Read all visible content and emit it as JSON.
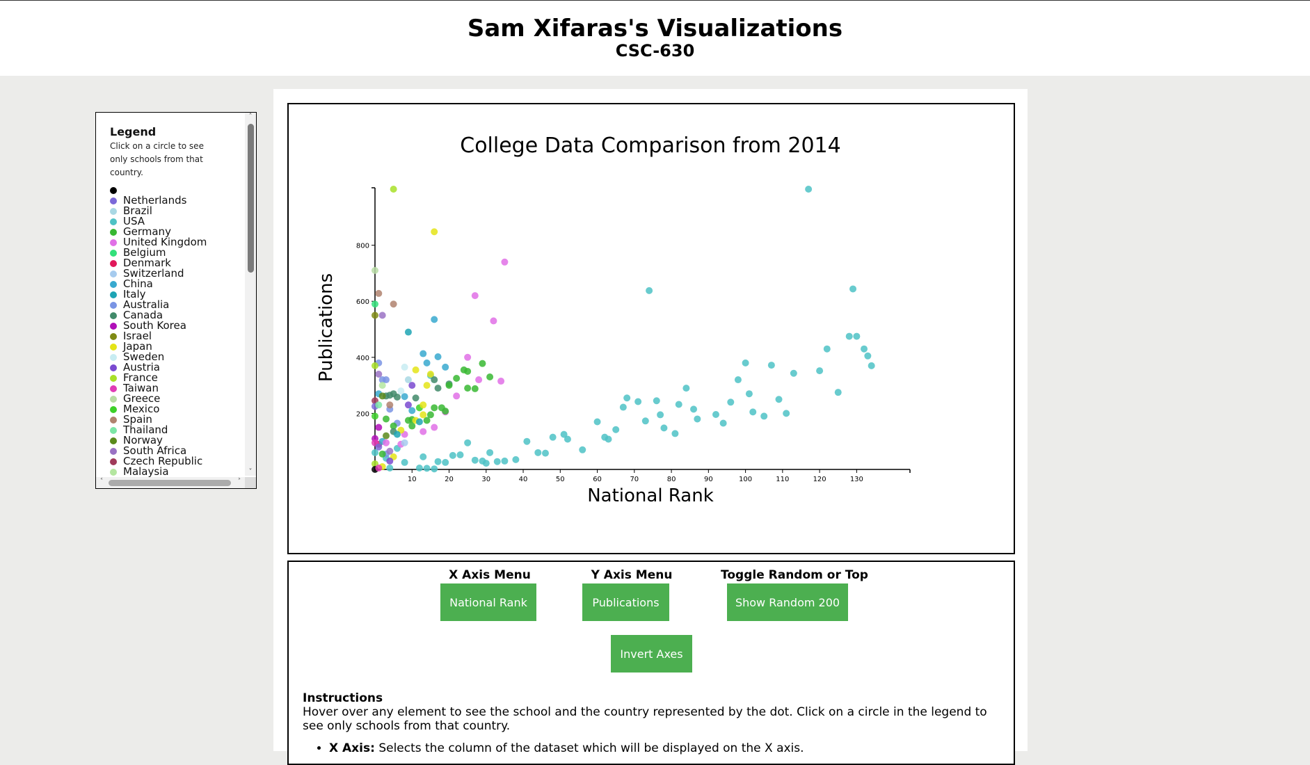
{
  "header": {
    "title": "Sam Xifaras's Visualizations",
    "subtitle": "CSC-630"
  },
  "legend": {
    "heading": "Legend",
    "hint": "Click on a circle to see only schools from that country.",
    "items": [
      {
        "label": "",
        "color": "#000000"
      },
      {
        "label": "Netherlands",
        "color": "#7b68d8"
      },
      {
        "label": "Brazil",
        "color": "#a9d8e4"
      },
      {
        "label": "USA",
        "color": "#4ec2c5"
      },
      {
        "label": "Germany",
        "color": "#38b832"
      },
      {
        "label": "United Kingdom",
        "color": "#e070e6"
      },
      {
        "label": "Belgium",
        "color": "#32e07a"
      },
      {
        "label": "Denmark",
        "color": "#e0185a"
      },
      {
        "label": "Switzerland",
        "color": "#a6cbee"
      },
      {
        "label": "China",
        "color": "#38a9cf"
      },
      {
        "label": "Italy",
        "color": "#1ea4b4"
      },
      {
        "label": "Australia",
        "color": "#7a94e4"
      },
      {
        "label": "Canada",
        "color": "#418a6a"
      },
      {
        "label": "South Korea",
        "color": "#b00eb8"
      },
      {
        "label": "Israel",
        "color": "#7f8a14"
      },
      {
        "label": "Japan",
        "color": "#e4e418"
      },
      {
        "label": "Sweden",
        "color": "#c8ecf2"
      },
      {
        "label": "Austria",
        "color": "#7a4ad0"
      },
      {
        "label": "France",
        "color": "#a8e028"
      },
      {
        "label": "Taiwan",
        "color": "#e03cb6"
      },
      {
        "label": "Greece",
        "color": "#b7dca4"
      },
      {
        "label": "Mexico",
        "color": "#3cd028"
      },
      {
        "label": "Spain",
        "color": "#b0826e"
      },
      {
        "label": "Thailand",
        "color": "#7ce6a6"
      },
      {
        "label": "Norway",
        "color": "#5a8a1c"
      },
      {
        "label": "South Africa",
        "color": "#9a72c4"
      },
      {
        "label": "Czech Republic",
        "color": "#a03a5a"
      },
      {
        "label": "Malaysia",
        "color": "#b4e6a0"
      }
    ]
  },
  "chart_data": {
    "type": "scatter",
    "title": "College Data Comparison from 2014",
    "xlabel": "National Rank",
    "ylabel": "Publications",
    "xlim": [
      0,
      135
    ],
    "ylim": [
      0,
      1000
    ],
    "xticks": [
      10,
      20,
      30,
      40,
      50,
      60,
      70,
      80,
      90,
      100,
      110,
      120,
      130
    ],
    "yticks": [
      200,
      400,
      600,
      800
    ],
    "grid": false,
    "points": [
      {
        "x": 117,
        "y": 1000,
        "c": "#4ec2c5"
      },
      {
        "x": 74,
        "y": 638,
        "c": "#4ec2c5"
      },
      {
        "x": 129,
        "y": 644,
        "c": "#4ec2c5"
      },
      {
        "x": 128,
        "y": 475,
        "c": "#4ec2c5"
      },
      {
        "x": 130,
        "y": 475,
        "c": "#4ec2c5"
      },
      {
        "x": 132,
        "y": 430,
        "c": "#4ec2c5"
      },
      {
        "x": 133,
        "y": 405,
        "c": "#4ec2c5"
      },
      {
        "x": 134,
        "y": 370,
        "c": "#4ec2c5"
      },
      {
        "x": 122,
        "y": 430,
        "c": "#4ec2c5"
      },
      {
        "x": 120,
        "y": 352,
        "c": "#4ec2c5"
      },
      {
        "x": 113,
        "y": 343,
        "c": "#4ec2c5"
      },
      {
        "x": 107,
        "y": 372,
        "c": "#4ec2c5"
      },
      {
        "x": 100,
        "y": 380,
        "c": "#4ec2c5"
      },
      {
        "x": 98,
        "y": 320,
        "c": "#4ec2c5"
      },
      {
        "x": 101,
        "y": 270,
        "c": "#4ec2c5"
      },
      {
        "x": 109,
        "y": 250,
        "c": "#4ec2c5"
      },
      {
        "x": 125,
        "y": 275,
        "c": "#4ec2c5"
      },
      {
        "x": 102,
        "y": 205,
        "c": "#4ec2c5"
      },
      {
        "x": 105,
        "y": 190,
        "c": "#4ec2c5"
      },
      {
        "x": 111,
        "y": 200,
        "c": "#4ec2c5"
      },
      {
        "x": 96,
        "y": 240,
        "c": "#4ec2c5"
      },
      {
        "x": 92,
        "y": 196,
        "c": "#4ec2c5"
      },
      {
        "x": 94,
        "y": 165,
        "c": "#4ec2c5"
      },
      {
        "x": 84,
        "y": 290,
        "c": "#4ec2c5"
      },
      {
        "x": 82,
        "y": 232,
        "c": "#4ec2c5"
      },
      {
        "x": 86,
        "y": 215,
        "c": "#4ec2c5"
      },
      {
        "x": 87,
        "y": 180,
        "c": "#4ec2c5"
      },
      {
        "x": 76,
        "y": 245,
        "c": "#4ec2c5"
      },
      {
        "x": 77,
        "y": 195,
        "c": "#4ec2c5"
      },
      {
        "x": 78,
        "y": 148,
        "c": "#4ec2c5"
      },
      {
        "x": 81,
        "y": 128,
        "c": "#4ec2c5"
      },
      {
        "x": 73,
        "y": 173,
        "c": "#4ec2c5"
      },
      {
        "x": 68,
        "y": 255,
        "c": "#4ec2c5"
      },
      {
        "x": 67,
        "y": 222,
        "c": "#4ec2c5"
      },
      {
        "x": 71,
        "y": 242,
        "c": "#4ec2c5"
      },
      {
        "x": 65,
        "y": 142,
        "c": "#4ec2c5"
      },
      {
        "x": 62,
        "y": 115,
        "c": "#4ec2c5"
      },
      {
        "x": 63,
        "y": 108,
        "c": "#4ec2c5"
      },
      {
        "x": 60,
        "y": 170,
        "c": "#4ec2c5"
      },
      {
        "x": 56,
        "y": 70,
        "c": "#4ec2c5"
      },
      {
        "x": 51,
        "y": 125,
        "c": "#4ec2c5"
      },
      {
        "x": 52,
        "y": 108,
        "c": "#4ec2c5"
      },
      {
        "x": 48,
        "y": 115,
        "c": "#4ec2c5"
      },
      {
        "x": 46,
        "y": 58,
        "c": "#4ec2c5"
      },
      {
        "x": 44,
        "y": 60,
        "c": "#4ec2c5"
      },
      {
        "x": 41,
        "y": 100,
        "c": "#4ec2c5"
      },
      {
        "x": 38,
        "y": 35,
        "c": "#4ec2c5"
      },
      {
        "x": 35,
        "y": 30,
        "c": "#4ec2c5"
      },
      {
        "x": 33,
        "y": 28,
        "c": "#4ec2c5"
      },
      {
        "x": 31,
        "y": 60,
        "c": "#4ec2c5"
      },
      {
        "x": 30,
        "y": 22,
        "c": "#4ec2c5"
      },
      {
        "x": 29,
        "y": 30,
        "c": "#4ec2c5"
      },
      {
        "x": 27,
        "y": 33,
        "c": "#4ec2c5"
      },
      {
        "x": 25,
        "y": 95,
        "c": "#4ec2c5"
      },
      {
        "x": 23,
        "y": 52,
        "c": "#4ec2c5"
      },
      {
        "x": 21,
        "y": 50,
        "c": "#4ec2c5"
      },
      {
        "x": 19,
        "y": 25,
        "c": "#4ec2c5"
      },
      {
        "x": 17,
        "y": 28,
        "c": "#4ec2c5"
      },
      {
        "x": 16,
        "y": 2,
        "c": "#4ec2c5"
      },
      {
        "x": 14,
        "y": 4,
        "c": "#4ec2c5"
      },
      {
        "x": 12,
        "y": 5,
        "c": "#4ec2c5"
      },
      {
        "x": 13,
        "y": 45,
        "c": "#4ec2c5"
      },
      {
        "x": 8,
        "y": 25,
        "c": "#4ec2c5"
      },
      {
        "x": 6,
        "y": 75,
        "c": "#4ec2c5"
      },
      {
        "x": 4,
        "y": 5,
        "c": "#4ec2c5"
      },
      {
        "x": 3,
        "y": 40,
        "c": "#4ec2c5"
      },
      {
        "x": 16,
        "y": 535,
        "c": "#38a9cf"
      },
      {
        "x": 9,
        "y": 490,
        "c": "#1ea4b4"
      },
      {
        "x": 14,
        "y": 380,
        "c": "#38a9cf"
      },
      {
        "x": 17,
        "y": 402,
        "c": "#38a9cf"
      },
      {
        "x": 13,
        "y": 413,
        "c": "#38a9cf"
      },
      {
        "x": 19,
        "y": 365,
        "c": "#38a9cf"
      },
      {
        "x": 15,
        "y": 335,
        "c": "#4ec2c5"
      },
      {
        "x": 8,
        "y": 260,
        "c": "#38a9cf"
      },
      {
        "x": 1,
        "y": 270,
        "c": "#38a9cf"
      },
      {
        "x": 2,
        "y": 320,
        "c": "#7a94e4"
      },
      {
        "x": 3,
        "y": 320,
        "c": "#7a94e4"
      },
      {
        "x": 1,
        "y": 380,
        "c": "#7a94e4"
      },
      {
        "x": 4,
        "y": 215,
        "c": "#7a94e4"
      },
      {
        "x": 6,
        "y": 165,
        "c": "#7a94e4"
      },
      {
        "x": 9,
        "y": 320,
        "c": "#a9d8e4"
      },
      {
        "x": 10,
        "y": 300,
        "c": "#7a4ad0"
      },
      {
        "x": 16,
        "y": 320,
        "c": "#418a6a"
      },
      {
        "x": 17,
        "y": 290,
        "c": "#418a6a"
      },
      {
        "x": 11,
        "y": 255,
        "c": "#418a6a"
      },
      {
        "x": 6,
        "y": 258,
        "c": "#418a6a"
      },
      {
        "x": 20,
        "y": 305,
        "c": "#418a6a"
      },
      {
        "x": 35,
        "y": 740,
        "c": "#e070e6"
      },
      {
        "x": 27,
        "y": 620,
        "c": "#e070e6"
      },
      {
        "x": 32,
        "y": 530,
        "c": "#e070e6"
      },
      {
        "x": 25,
        "y": 400,
        "c": "#e070e6"
      },
      {
        "x": 28,
        "y": 320,
        "c": "#e070e6"
      },
      {
        "x": 34,
        "y": 315,
        "c": "#e070e6"
      },
      {
        "x": 22,
        "y": 262,
        "c": "#e070e6"
      },
      {
        "x": 19,
        "y": 205,
        "c": "#e070e6"
      },
      {
        "x": 16,
        "y": 150,
        "c": "#e070e6"
      },
      {
        "x": 13,
        "y": 135,
        "c": "#e070e6"
      },
      {
        "x": 8,
        "y": 125,
        "c": "#e070e6"
      },
      {
        "x": 7,
        "y": 90,
        "c": "#e070e6"
      },
      {
        "x": 29,
        "y": 378,
        "c": "#38b832"
      },
      {
        "x": 24,
        "y": 355,
        "c": "#38b832"
      },
      {
        "x": 25,
        "y": 350,
        "c": "#38b832"
      },
      {
        "x": 22,
        "y": 325,
        "c": "#38b832"
      },
      {
        "x": 31,
        "y": 330,
        "c": "#38b832"
      },
      {
        "x": 25,
        "y": 290,
        "c": "#38b832"
      },
      {
        "x": 27,
        "y": 288,
        "c": "#38b832"
      },
      {
        "x": 20,
        "y": 300,
        "c": "#38b832"
      },
      {
        "x": 16,
        "y": 220,
        "c": "#38b832"
      },
      {
        "x": 18,
        "y": 220,
        "c": "#38b832"
      },
      {
        "x": 19,
        "y": 208,
        "c": "#38b832"
      },
      {
        "x": 15,
        "y": 195,
        "c": "#38b832"
      },
      {
        "x": 14,
        "y": 175,
        "c": "#38b832"
      },
      {
        "x": 10,
        "y": 178,
        "c": "#38b832"
      },
      {
        "x": 9,
        "y": 175,
        "c": "#38b832"
      },
      {
        "x": 10,
        "y": 155,
        "c": "#38b832"
      },
      {
        "x": 5,
        "y": 155,
        "c": "#38b832"
      },
      {
        "x": 3,
        "y": 180,
        "c": "#38b832"
      },
      {
        "x": 12,
        "y": 220,
        "c": "#3cd028"
      },
      {
        "x": 0,
        "y": 190,
        "c": "#3cd028"
      },
      {
        "x": 5,
        "y": 1000,
        "c": "#a8e028"
      },
      {
        "x": 0,
        "y": 370,
        "c": "#a8e028"
      },
      {
        "x": 16,
        "y": 848,
        "c": "#e4e418"
      },
      {
        "x": 11,
        "y": 355,
        "c": "#e4e418"
      },
      {
        "x": 15,
        "y": 340,
        "c": "#e4e418"
      },
      {
        "x": 13,
        "y": 230,
        "c": "#e4e418"
      },
      {
        "x": 14,
        "y": 300,
        "c": "#e4e418"
      },
      {
        "x": 13,
        "y": 195,
        "c": "#e4e418"
      },
      {
        "x": 11,
        "y": 175,
        "c": "#e4e418"
      },
      {
        "x": 7,
        "y": 140,
        "c": "#e4e418"
      },
      {
        "x": 5,
        "y": 45,
        "c": "#e4e418"
      },
      {
        "x": 0,
        "y": 710,
        "c": "#b7dca4"
      },
      {
        "x": 0,
        "y": 590,
        "c": "#32e07a"
      },
      {
        "x": 1,
        "y": 628,
        "c": "#b0826e"
      },
      {
        "x": 5,
        "y": 590,
        "c": "#b0826e"
      },
      {
        "x": 4,
        "y": 230,
        "c": "#b0826e"
      },
      {
        "x": 0,
        "y": 550,
        "c": "#7f8a14"
      },
      {
        "x": 2,
        "y": 550,
        "c": "#9a72c4"
      },
      {
        "x": 1,
        "y": 340,
        "c": "#9a72c4"
      },
      {
        "x": 9,
        "y": 230,
        "c": "#7a4ad0"
      },
      {
        "x": 5,
        "y": 270,
        "c": "#418a6a"
      },
      {
        "x": 4,
        "y": 265,
        "c": "#418a6a"
      },
      {
        "x": 3,
        "y": 262,
        "c": "#418a6a"
      },
      {
        "x": 2,
        "y": 262,
        "c": "#5a8a1c"
      },
      {
        "x": 0,
        "y": 245,
        "c": "#a03a5a"
      },
      {
        "x": 0,
        "y": 225,
        "c": "#7b68d8"
      },
      {
        "x": 1,
        "y": 150,
        "c": "#b00eb8"
      },
      {
        "x": 0,
        "y": 110,
        "c": "#b00eb8"
      },
      {
        "x": 1,
        "y": 90,
        "c": "#e0185a"
      },
      {
        "x": 0,
        "y": 95,
        "c": "#e03cb6"
      },
      {
        "x": 0,
        "y": 60,
        "c": "#4ec2c5"
      },
      {
        "x": 2,
        "y": 100,
        "c": "#38a9cf"
      },
      {
        "x": 1,
        "y": 80,
        "c": "#7b68d8"
      },
      {
        "x": 3,
        "y": 55,
        "c": "#7a94e4"
      },
      {
        "x": 4,
        "y": 30,
        "c": "#7a4ad0"
      },
      {
        "x": 0,
        "y": 20,
        "c": "#a8e028"
      },
      {
        "x": 2,
        "y": 10,
        "c": "#e4e418"
      },
      {
        "x": 0,
        "y": 0,
        "c": "#000000"
      },
      {
        "x": 1,
        "y": 5,
        "c": "#e03cb6"
      },
      {
        "x": 5,
        "y": 135,
        "c": "#418a6a"
      },
      {
        "x": 8,
        "y": 95,
        "c": "#a6cbee"
      },
      {
        "x": 7,
        "y": 280,
        "c": "#c8ecf2"
      },
      {
        "x": 8,
        "y": 365,
        "c": "#c8ecf2"
      },
      {
        "x": 2,
        "y": 300,
        "c": "#b4e6a0"
      },
      {
        "x": 1,
        "y": 230,
        "c": "#7ce6a6"
      },
      {
        "x": 3,
        "y": 120,
        "c": "#5a8a1c"
      },
      {
        "x": 6,
        "y": 125,
        "c": "#1ea4b4"
      },
      {
        "x": 10,
        "y": 210,
        "c": "#38a9cf"
      },
      {
        "x": 12,
        "y": 170,
        "c": "#1ea4b4"
      },
      {
        "x": 3,
        "y": 95,
        "c": "#e070e6"
      },
      {
        "x": 4,
        "y": 65,
        "c": "#9a72c4"
      },
      {
        "x": 2,
        "y": 55,
        "c": "#38b832"
      }
    ]
  },
  "controls": {
    "x_menu_label": "X Axis Menu",
    "y_menu_label": "Y Axis Menu",
    "toggle_label": "Toggle Random or Top",
    "x_button": "National Rank",
    "y_button": "Publications",
    "toggle_button": "Show Random 200",
    "invert_button": "Invert Axes",
    "button_color": "#4caf50"
  },
  "instructions": {
    "heading": "Instructions",
    "text": "Hover over any element to see the school and the country represented by the dot. Click on a circle in the legend to see only schools from that country.",
    "bullets": [
      {
        "term": "X Axis:",
        "text": "Selects the column of the dataset which will be displayed on the X axis."
      }
    ]
  }
}
